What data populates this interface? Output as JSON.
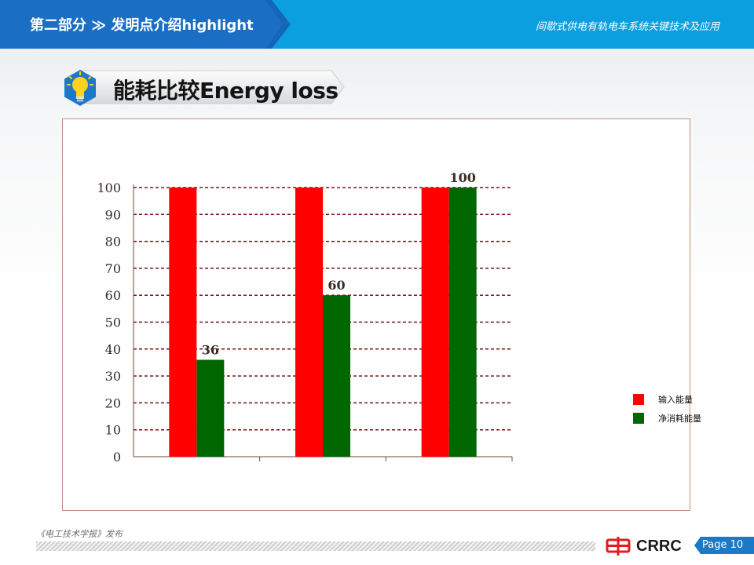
{
  "header": {
    "section_title": "第二部分 ≫ 发明点介绍highlight",
    "doc_title": "间歇式供电有轨电车系统关键技术及应用",
    "bar_color": "#0c9fe0",
    "tab_color": "#1565b8"
  },
  "slide": {
    "title": "能耗比较Energy loss",
    "title_icon": "lightbulb-icon"
  },
  "chart_data": {
    "type": "bar",
    "categories": [
      "",
      "",
      ""
    ],
    "series": [
      {
        "name": "输入能量",
        "values": [
          100,
          100,
          100
        ],
        "color": "#ff0000"
      },
      {
        "name": "净消耗能量",
        "values": [
          36,
          60,
          100
        ],
        "color": "#006600"
      }
    ],
    "data_labels": [
      "36",
      "60",
      "100"
    ],
    "y_ticks": [
      "0",
      "10",
      "20",
      "30",
      "40",
      "50",
      "60",
      "70",
      "80",
      "90",
      "100"
    ],
    "ylim": [
      0,
      100
    ],
    "grid": true,
    "grid_style": "dashed",
    "legend_position": "right"
  },
  "footer": {
    "source": "《电工技术学报》发布",
    "logo_text": "CRRC",
    "logo_icon": "crrc-logo-icon",
    "page": "Page 10"
  }
}
